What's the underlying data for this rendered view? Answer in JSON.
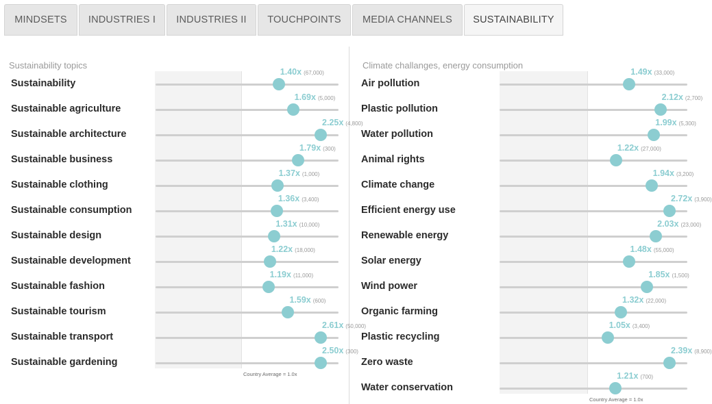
{
  "tabs": [
    {
      "label": "MINDSETS",
      "active": false
    },
    {
      "label": "INDUSTRIES I",
      "active": false
    },
    {
      "label": "INDUSTRIES II",
      "active": false
    },
    {
      "label": "TOUCHPOINTS",
      "active": false
    },
    {
      "label": "MEDIA CHANNELS",
      "active": false
    },
    {
      "label": "SUSTAINABILITY",
      "active": true
    }
  ],
  "colors": {
    "accent": "#8ccdd1",
    "track": "#cfcfcf",
    "label": "#2b2b2b",
    "muted": "#9a9a9a"
  },
  "country_average_note": "Country Average = 1.0x",
  "panels": [
    {
      "title": "Sustainability topics",
      "rows": [
        {
          "label": "Sustainability",
          "ratio": "1.40x",
          "count": "(67,000)",
          "value": 1.4
        },
        {
          "label": "Sustainable agriculture",
          "ratio": "1.69x",
          "count": "(5,000)",
          "value": 1.69
        },
        {
          "label": "Sustainable architecture",
          "ratio": "2.25x",
          "count": "(4,800)",
          "value": 2.25
        },
        {
          "label": "Sustainable business",
          "ratio": "1.79x",
          "count": "(300)",
          "value": 1.79
        },
        {
          "label": "Sustainable clothing",
          "ratio": "1.37x",
          "count": "(1,000)",
          "value": 1.37
        },
        {
          "label": "Sustainable consumption",
          "ratio": "1.36x",
          "count": "(3,400)",
          "value": 1.36
        },
        {
          "label": "Sustainable design",
          "ratio": "1.31x",
          "count": "(10,000)",
          "value": 1.31
        },
        {
          "label": "Sustainable development",
          "ratio": "1.22x",
          "count": "(18,000)",
          "value": 1.22
        },
        {
          "label": "Sustainable fashion",
          "ratio": "1.19x",
          "count": "(11,000)",
          "value": 1.19
        },
        {
          "label": "Sustainable tourism",
          "ratio": "1.59x",
          "count": "(600)",
          "value": 1.59
        },
        {
          "label": "Sustainable transport",
          "ratio": "2.61x",
          "count": "(50,000)",
          "value": 2.61
        },
        {
          "label": "Sustainable gardening",
          "ratio": "2.50x",
          "count": "(300)",
          "value": 2.5
        }
      ]
    },
    {
      "title": "Climate challanges, energy consumption",
      "rows": [
        {
          "label": "Air pollution",
          "ratio": "1.49x",
          "count": "(33,000)",
          "value": 1.49
        },
        {
          "label": "Plastic pollution",
          "ratio": "2.12x",
          "count": "(2,700)",
          "value": 2.12
        },
        {
          "label": "Water pollution",
          "ratio": "1.99x",
          "count": "(5,300)",
          "value": 1.99
        },
        {
          "label": "Animal rights",
          "ratio": "1.22x",
          "count": "(27,000)",
          "value": 1.22
        },
        {
          "label": "Climate change",
          "ratio": "1.94x",
          "count": "(3,200)",
          "value": 1.94
        },
        {
          "label": "Efficient energy use",
          "ratio": "2.72x",
          "count": "(3,900)",
          "value": 2.72
        },
        {
          "label": "Renewable energy",
          "ratio": "2.03x",
          "count": "(23,000)",
          "value": 2.03
        },
        {
          "label": "Solar energy",
          "ratio": "1.48x",
          "count": "(55,000)",
          "value": 1.48
        },
        {
          "label": "Wind power",
          "ratio": "1.85x",
          "count": "(1,500)",
          "value": 1.85
        },
        {
          "label": "Organic farming",
          "ratio": "1.32x",
          "count": "(22,000)",
          "value": 1.32
        },
        {
          "label": "Plastic recycling",
          "ratio": "1.05x",
          "count": "(3,400)",
          "value": 1.05
        },
        {
          "label": "Zero waste",
          "ratio": "2.39x",
          "count": "(8,900)",
          "value": 2.39
        },
        {
          "label": "Water conservation",
          "ratio": "1.21x",
          "count": "(700)",
          "value": 1.21
        }
      ]
    }
  ]
}
